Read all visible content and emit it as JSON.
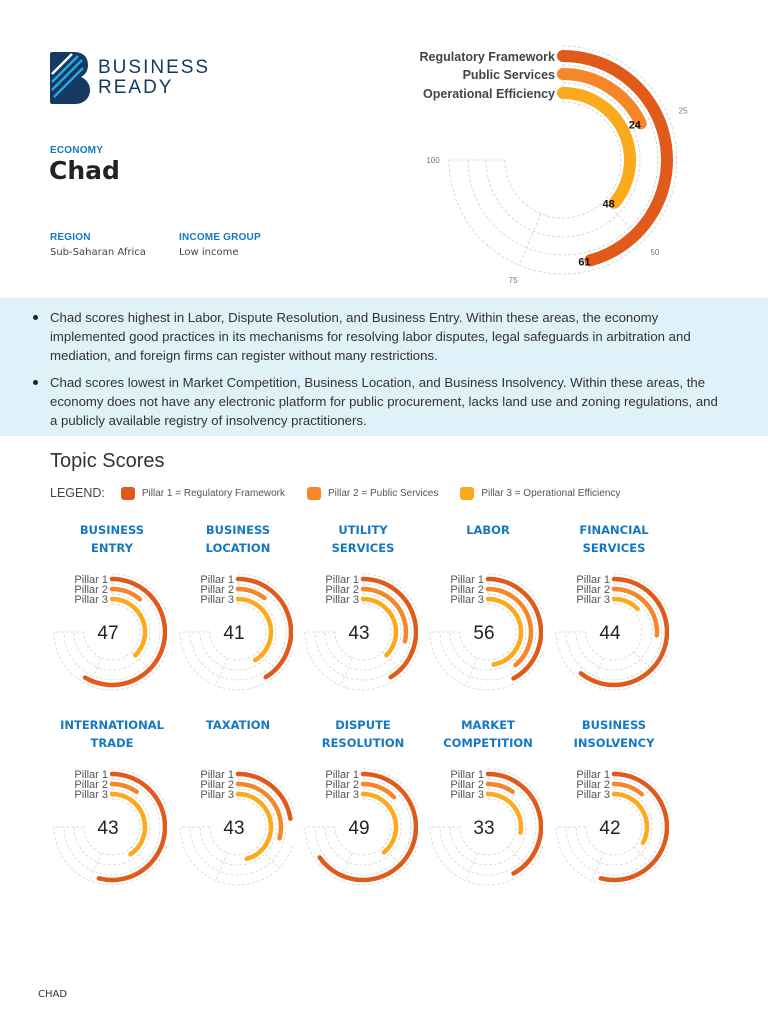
{
  "brand": {
    "line1": "BUSINESS",
    "line2": "READY",
    "colors": {
      "navy": "#153a62",
      "light_blue": "#29a8e0"
    }
  },
  "economy": {
    "label": "ECONOMY",
    "name": "Chad"
  },
  "region": {
    "label": "REGION",
    "value": "Sub-Saharan Africa"
  },
  "income_group": {
    "label": "INCOME GROUP",
    "value": "Low income"
  },
  "colors": {
    "pillar1": "#e05a1c",
    "pillar2": "#f5862a",
    "pillar3": "#fbaa1c",
    "band": "#dff1f9",
    "accent": "#1578c2"
  },
  "summary": [
    "Chad scores highest in Labor, Dispute Resolution, and Business Entry. Within these areas, the economy implemented good practices in its mechanisms for resolving labor disputes, legal safeguards in arbitration and mediation, and foreign firms can register without many restrictions.",
    "Chad scores lowest in Market Competition, Business Location, and Business Insolvency. Within these areas, the economy does not have any electronic platform for public procurement, lacks land use and zoning regulations, and a publicly available registry of insolvency practitioners."
  ],
  "topic_scores": {
    "title": "Topic Scores",
    "legend_label": "LEGEND:",
    "legend": [
      "Pillar 1 = Regulatory Framework",
      "Pillar 2 = Public Services",
      "Pillar 3 = Operational Efficiency"
    ]
  },
  "chart_data": [
    {
      "type": "radial-bar",
      "series": [
        "Regulatory Framework",
        "Public Services",
        "Operational Efficiency"
      ],
      "values": [
        61,
        24,
        48
      ],
      "axis_ticks": [
        "25",
        "50",
        "75",
        "100"
      ],
      "range": [
        0,
        100
      ]
    },
    {
      "type": "radial-bar-grid",
      "pillar_labels": [
        "Pillar 1",
        "Pillar 2",
        "Pillar 3"
      ],
      "range": [
        0,
        100
      ],
      "topics": [
        {
          "title": [
            "BUSINESS",
            "ENTRY"
          ],
          "score": "47",
          "pillars": [
            78,
            15,
            50
          ]
        },
        {
          "title": [
            "BUSINESS",
            "LOCATION"
          ],
          "score": "41",
          "pillars": [
            55,
            14,
            55
          ]
        },
        {
          "title": [
            "UTILITY",
            "SERVICES"
          ],
          "score": "43",
          "pillars": [
            55,
            38,
            50
          ]
        },
        {
          "title": [
            "LABOR",
            ""
          ],
          "score": "56",
          "pillars": [
            56,
            52,
            63
          ]
        },
        {
          "title": [
            "FINANCIAL",
            "SERVICES"
          ],
          "score": "44",
          "pillars": [
            81,
            35,
            17
          ]
        },
        {
          "title": [
            "INTERNATIONAL",
            "TRADE"
          ],
          "score": "43",
          "pillars": [
            72,
            13,
            54
          ]
        },
        {
          "title": [
            "TAXATION",
            ""
          ],
          "score": "43",
          "pillars": [
            30,
            39,
            61
          ]
        },
        {
          "title": [
            "DISPUTE",
            "RESOLUTION"
          ],
          "score": "49",
          "pillars": [
            87,
            17,
            52
          ]
        },
        {
          "title": [
            "MARKET",
            "COMPETITION"
          ],
          "score": "33",
          "pillars": [
            56,
            13,
            37
          ]
        },
        {
          "title": [
            "BUSINESS",
            "INSOLVENCY"
          ],
          "score": "42",
          "pillars": [
            72,
            15,
            44
          ]
        }
      ]
    }
  ],
  "footer": {
    "text": "CHAD"
  }
}
